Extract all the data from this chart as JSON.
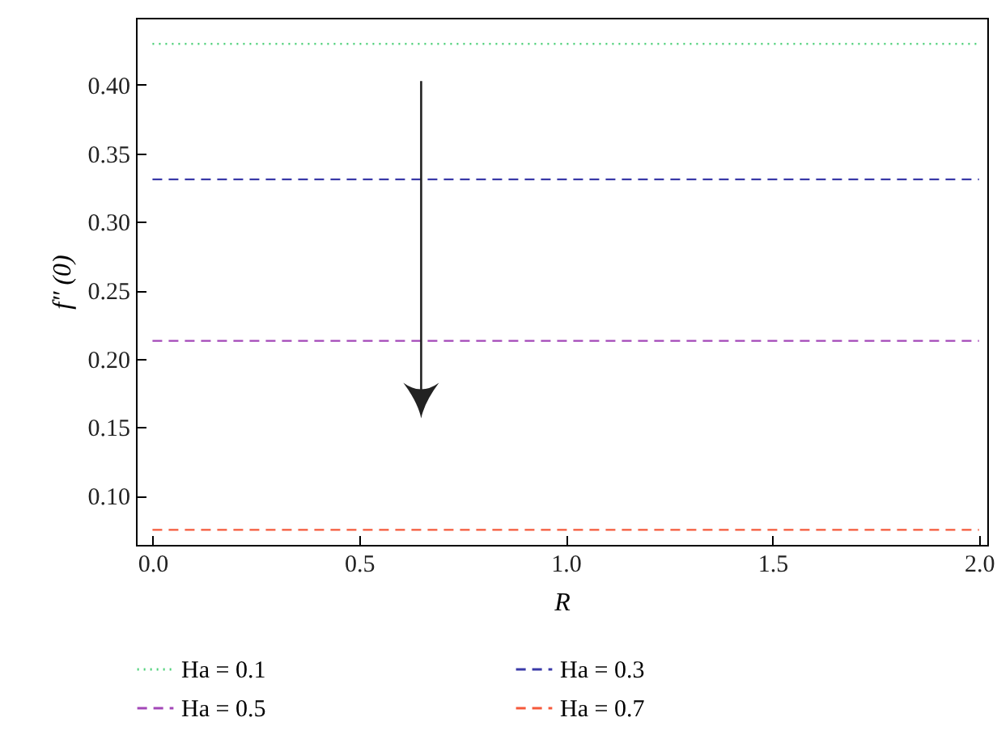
{
  "chart_data": {
    "type": "line",
    "xlabel": "R",
    "ylabel": "f″ (0)",
    "x": [
      0,
      2
    ],
    "series": [
      {
        "name": "Ha = 0.1",
        "color": "#4fd17a",
        "values": [
          0.43,
          0.43
        ],
        "line_style": "dotted"
      },
      {
        "name": "Ha = 0.3",
        "color": "#3a3aa8",
        "values": [
          0.331,
          0.331
        ],
        "line_style": "dashed"
      },
      {
        "name": "Ha = 0.5",
        "color": "#a347b8",
        "values": [
          0.213,
          0.213
        ],
        "line_style": "dashed"
      },
      {
        "name": "Ha = 0.7",
        "color": "#f5593a",
        "values": [
          0.075,
          0.075
        ],
        "line_style": "dashed"
      }
    ],
    "xlim": [
      -0.04,
      2.02
    ],
    "xticks": [
      {
        "value": 0,
        "label": "0.0"
      },
      0.5,
      {
        "value": 1,
        "label": "1.0"
      },
      1.5,
      {
        "value": 2,
        "label": "2.0"
      }
    ],
    "ylim": [
      0.064,
      0.449
    ],
    "yticks": [
      {
        "value": 0.1,
        "label": "0.10"
      },
      {
        "value": 0.15,
        "label": "0.15"
      },
      {
        "value": 0.2,
        "label": "0.20"
      },
      {
        "value": 0.25,
        "label": "0.25"
      },
      {
        "value": 0.3,
        "label": "0.30"
      },
      {
        "value": 0.35,
        "label": "0.35"
      },
      {
        "value": 0.4,
        "label": "0.40"
      }
    ],
    "grid": false,
    "legend": "bottom",
    "marker": "none"
  }
}
